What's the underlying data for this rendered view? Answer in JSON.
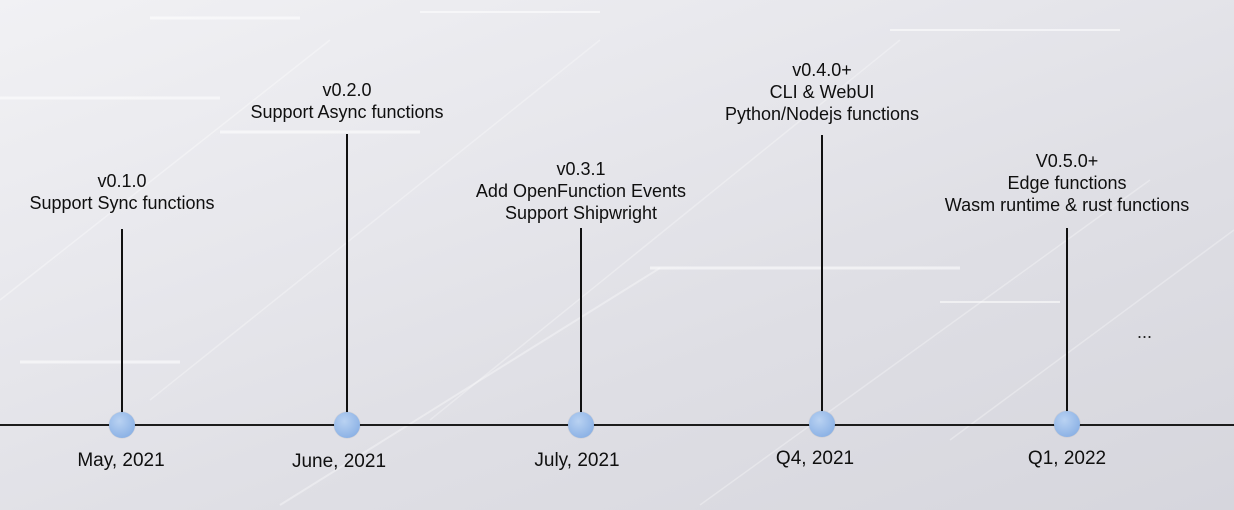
{
  "milestones": [
    {
      "version": "v0.1.0",
      "features": [
        "Support Sync functions"
      ],
      "date": "May, 2021"
    },
    {
      "version": "v0.2.0",
      "features": [
        "Support Async functions"
      ],
      "date": "June, 2021"
    },
    {
      "version": "v0.3.1",
      "features": [
        "Add OpenFunction Events",
        "Support Shipwright"
      ],
      "date": "July, 2021"
    },
    {
      "version": "v0.4.0+",
      "features": [
        "CLI & WebUI",
        "Python/Nodejs functions"
      ],
      "date": "Q4, 2021"
    },
    {
      "version": "V0.5.0+",
      "features": [
        "Edge functions",
        "Wasm runtime & rust functions"
      ],
      "date": "Q1, 2022"
    }
  ],
  "ellipsis": "...",
  "colors": {
    "dot": "#8fb4e6",
    "line": "#111111",
    "text": "#0f0f0f"
  }
}
